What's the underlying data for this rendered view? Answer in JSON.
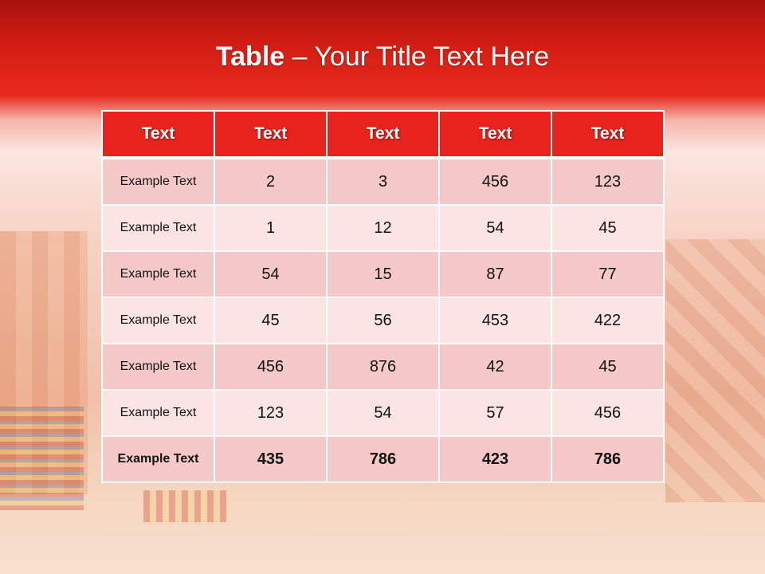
{
  "title": {
    "bold": "Table",
    "rest": " – Your Title Text Here"
  },
  "table": {
    "headers": [
      "Text",
      "Text",
      "Text",
      "Text",
      "Text"
    ],
    "rows": [
      [
        "Example Text",
        "2",
        "3",
        "456",
        "123"
      ],
      [
        "Example Text",
        "1",
        "12",
        "54",
        "45"
      ],
      [
        "Example Text",
        "54",
        "15",
        "87",
        "77"
      ],
      [
        "Example Text",
        "45",
        "56",
        "453",
        "422"
      ],
      [
        "Example Text",
        "456",
        "876",
        "42",
        "45"
      ],
      [
        "Example Text",
        "123",
        "54",
        "57",
        "456"
      ],
      [
        "Example Text",
        "435",
        "786",
        "423",
        "786"
      ]
    ]
  },
  "colors": {
    "header": "#e8221c",
    "row_dark": "#f6c9c9",
    "row_light": "#fbe4e3",
    "banner": "#c41a12"
  }
}
